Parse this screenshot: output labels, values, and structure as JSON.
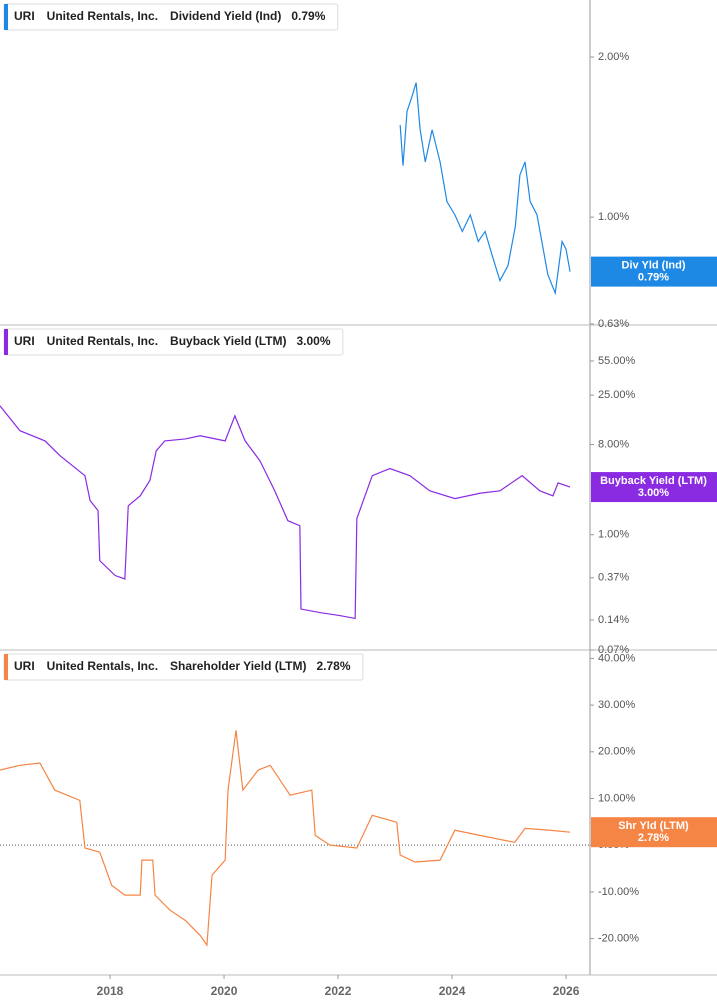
{
  "chart_data": [
    {
      "type": "line",
      "ticker": "URI",
      "company": "United Rentals, Inc.",
      "tag": "Div Yld (Ind)",
      "latest": {
        "value": 0.79,
        "label": "0.79%"
      },
      "log_scale": true,
      "xlim": [
        2016.07,
        2026.42
      ],
      "ylim": [
        0.627,
        2.56
      ],
      "yticks": [
        {
          "value": 2,
          "label": "2.00%"
        },
        {
          "value": 1,
          "label": "1.00%"
        },
        {
          "value": 0.63,
          "label": "0.63%"
        }
      ],
      "x": [
        2023.09,
        2023.14,
        2023.21,
        2023.3,
        2023.37,
        2023.44,
        2023.53,
        2023.65,
        2023.79,
        2023.91,
        2024.05,
        2024.18,
        2024.32,
        2024.46,
        2024.58,
        2024.7,
        2024.84,
        2024.98,
        2025.11,
        2025.19,
        2025.28,
        2025.37,
        2025.49,
        2025.6,
        2025.68,
        2025.81,
        2025.93,
        2026.0,
        2026.07
      ],
      "series": [
        {
          "name": "Dividend Yield (Ind)",
          "color": "#1e88e5",
          "values": [
            1.49,
            1.25,
            1.58,
            1.69,
            1.79,
            1.46,
            1.27,
            1.46,
            1.27,
            1.07,
            1.01,
            0.94,
            1.01,
            0.9,
            0.94,
            0.85,
            0.76,
            0.81,
            0.96,
            1.2,
            1.27,
            1.07,
            1.01,
            0.87,
            0.78,
            0.72,
            0.9,
            0.87,
            0.79
          ]
        }
      ]
    },
    {
      "type": "line",
      "ticker": "URI",
      "company": "United Rentals, Inc.",
      "tag": "Buyback Yield (LTM)",
      "latest": {
        "value": 3.0,
        "label": "3.00%"
      },
      "log_scale": true,
      "xlim": [
        2016.07,
        2026.42
      ],
      "ylim": [
        0.07,
        126
      ],
      "yticks": [
        {
          "value": 55,
          "label": "55.00%"
        },
        {
          "value": 25,
          "label": "25.00%"
        },
        {
          "value": 8,
          "label": "8.00%"
        },
        {
          "value": 1,
          "label": "1.00%"
        },
        {
          "value": 0.37,
          "label": "0.37%"
        },
        {
          "value": 0.14,
          "label": "0.14%"
        },
        {
          "value": 0.07,
          "label": "0.07%"
        }
      ],
      "x": [
        2016.07,
        2016.42,
        2016.86,
        2017.12,
        2017.56,
        2017.65,
        2017.79,
        2017.82,
        2018.09,
        2018.26,
        2018.32,
        2018.53,
        2018.7,
        2018.81,
        2018.96,
        2019.32,
        2019.58,
        2020.02,
        2020.19,
        2020.37,
        2020.63,
        2020.89,
        2021.12,
        2021.33,
        2021.35,
        2021.68,
        2022.03,
        2022.3,
        2022.33,
        2022.6,
        2022.91,
        2023.26,
        2023.61,
        2024.05,
        2024.49,
        2024.84,
        2025.23,
        2025.54,
        2025.77,
        2025.86,
        2026.07
      ],
      "series": [
        {
          "name": "Buyback Yield (LTM)",
          "color": "#8a2be2",
          "values": [
            19.5,
            11,
            8.7,
            6.2,
            3.9,
            2.2,
            1.74,
            0.55,
            0.39,
            0.36,
            1.95,
            2.45,
            3.5,
            6.9,
            8.7,
            9.1,
            9.8,
            8.7,
            15.5,
            8.7,
            5.5,
            2.75,
            1.38,
            1.23,
            0.18,
            0.166,
            0.155,
            0.145,
            1.45,
            3.9,
            4.6,
            3.9,
            2.75,
            2.3,
            2.6,
            2.75,
            3.9,
            2.75,
            2.45,
            3.3,
            3.0
          ]
        }
      ]
    },
    {
      "type": "line",
      "ticker": "URI",
      "company": "United Rentals, Inc.",
      "tag": "Shr Yld (LTM)",
      "latest": {
        "value": 2.78,
        "label": "2.78%"
      },
      "log_scale": false,
      "xlim": [
        2016.07,
        2026.42
      ],
      "ylim": [
        -27.8,
        41.8
      ],
      "yticks": [
        {
          "value": 40,
          "label": "40.00%"
        },
        {
          "value": 30,
          "label": "30.00%"
        },
        {
          "value": 20,
          "label": "20.00%"
        },
        {
          "value": 10,
          "label": "10.00%"
        },
        {
          "value": 0,
          "label": "0.00%"
        },
        {
          "value": -10,
          "label": "-10.00%"
        },
        {
          "value": -20,
          "label": "-20.00%"
        }
      ],
      "xticks": [
        2018,
        2020,
        2022,
        2024,
        2026
      ],
      "x": [
        2016.07,
        2016.42,
        2016.77,
        2017.03,
        2017.47,
        2017.56,
        2017.82,
        2018.03,
        2018.26,
        2018.53,
        2018.56,
        2018.75,
        2018.79,
        2019.05,
        2019.32,
        2019.58,
        2019.7,
        2019.79,
        2020.02,
        2020.07,
        2020.21,
        2020.33,
        2020.6,
        2020.81,
        2021.16,
        2021.54,
        2021.6,
        2021.86,
        2022.33,
        2022.6,
        2023.03,
        2023.09,
        2023.35,
        2023.79,
        2024.05,
        2024.49,
        2025.1,
        2025.28,
        2025.72,
        2026.07
      ],
      "series": [
        {
          "name": "Shareholder Yield (LTM)",
          "color": "#f58544",
          "values": [
            16.1,
            17.1,
            17.6,
            11.8,
            9.6,
            -0.6,
            -1.5,
            -8.6,
            -10.7,
            -10.7,
            -3.2,
            -3.2,
            -10.7,
            -13.9,
            -16.1,
            -19.3,
            -21.4,
            -6.4,
            -3.2,
            11.8,
            24.6,
            11.8,
            16.1,
            17.1,
            10.7,
            11.8,
            2.1,
            0,
            -0.6,
            6.4,
            4.9,
            -2.1,
            -3.6,
            -3.2,
            3.2,
            2.1,
            0.6,
            3.6,
            3.2,
            2.78
          ]
        }
      ]
    }
  ]
}
